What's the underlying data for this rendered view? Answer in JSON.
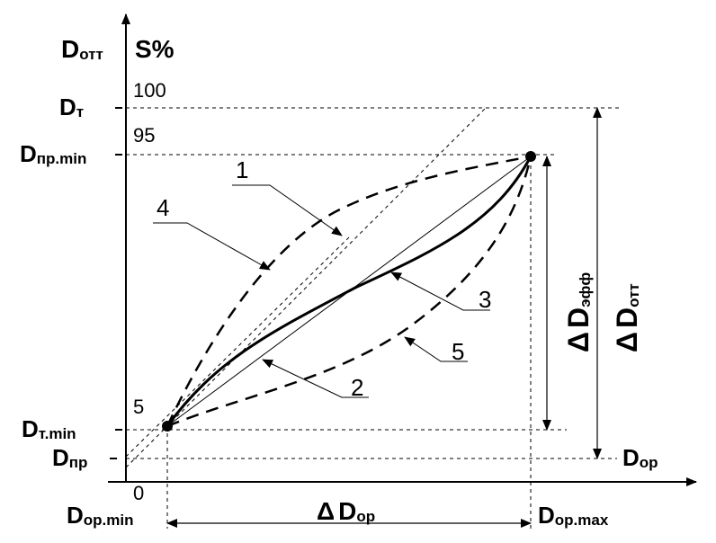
{
  "axes": {
    "y_label_main": "D",
    "y_label_main_sub": "отт",
    "y_label_right": "S%",
    "x_label_main": "D",
    "x_label_main_sub": "ор",
    "origin": "0"
  },
  "y_ticks": {
    "d_t": {
      "main": "D",
      "sub": "т"
    },
    "d_pr_min": {
      "main": "D",
      "sub": "пр.min"
    },
    "d_t_min": {
      "main": "D",
      "sub": "т.min"
    },
    "d_pr": {
      "main": "D",
      "sub": "пр"
    }
  },
  "percent_ticks": {
    "p100": "100",
    "p95": "95",
    "p5": "5"
  },
  "x_ticks": {
    "d_op_min": {
      "main": "D",
      "sub": "ор.min"
    },
    "d_op_max": {
      "main": "D",
      "sub": "ор.max"
    }
  },
  "dimensions": {
    "delta_d_op": {
      "delta": "Δ",
      "main": "D",
      "sub": "ор"
    },
    "delta_d_eff": {
      "delta": "Δ",
      "main": "D",
      "sub": "эфф"
    },
    "delta_d_ott": {
      "delta": "Δ",
      "main": "D",
      "sub": "отт"
    }
  },
  "curve_labels": {
    "c1": "1",
    "c2": "2",
    "c3": "3",
    "c4": "4",
    "c5": "5"
  }
}
